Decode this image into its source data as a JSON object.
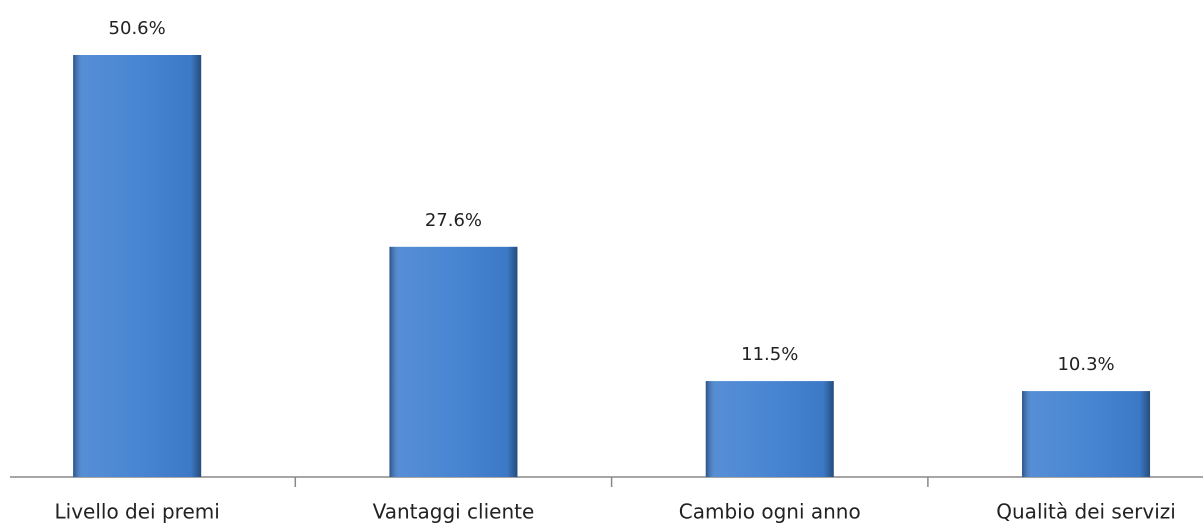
{
  "chart_data": {
    "type": "bar",
    "categories": [
      "Livello dei premi",
      "Vantaggi cliente",
      "Cambio ogni anno",
      "Qualità dei servizi"
    ],
    "values": [
      50.6,
      27.6,
      11.5,
      10.3
    ],
    "value_labels": [
      "50.6%",
      "27.6%",
      "11.5%",
      "10.3%"
    ],
    "color": "#3f7fd0"
  }
}
